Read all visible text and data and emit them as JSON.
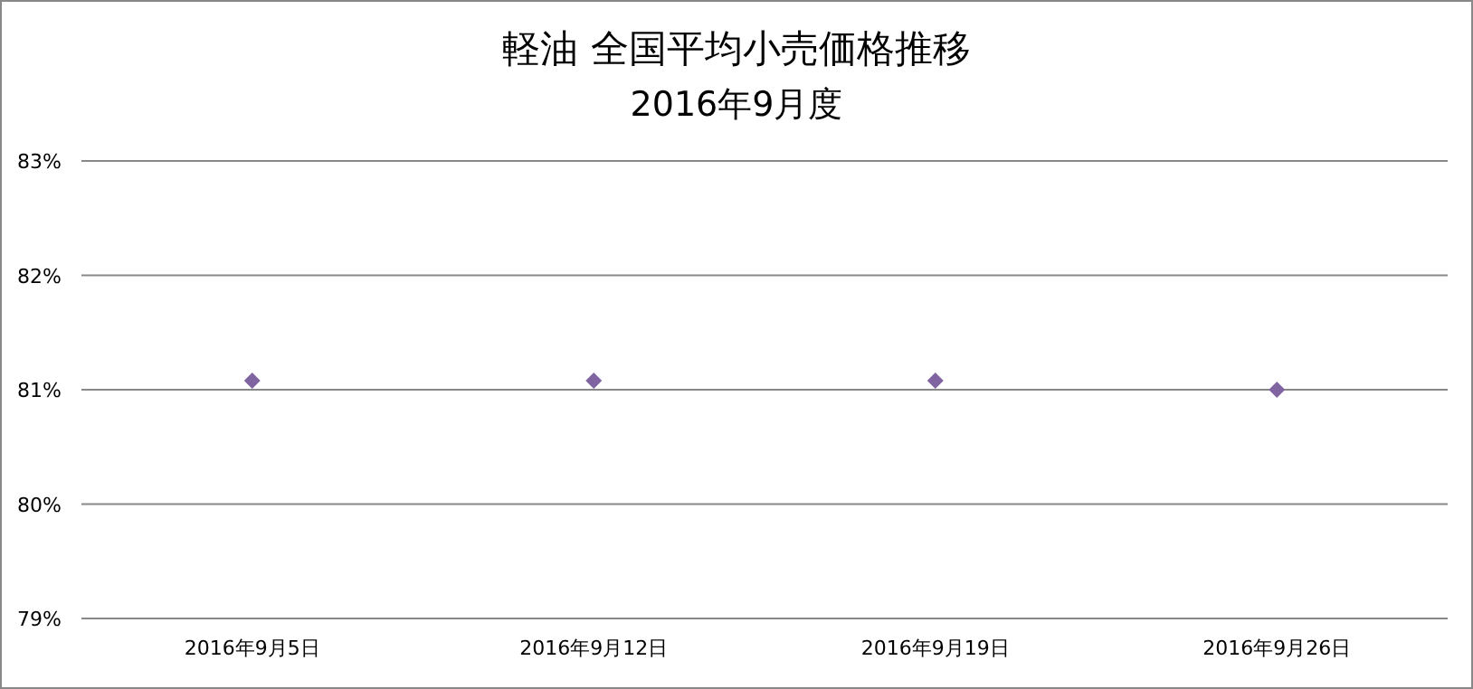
{
  "chart_data": {
    "type": "scatter",
    "title": "軽油  全国平均小売価格推移",
    "subtitle": "2016年9月度",
    "categories": [
      "2016年9月5日",
      "2016年9月12日",
      "2016年9月19日",
      "2016年9月26日"
    ],
    "series": [
      {
        "color": "#8064a2",
        "values": [
          81.08,
          81.08,
          81.08,
          81.0
        ]
      }
    ],
    "ylim": [
      79,
      83
    ],
    "yticks": [
      {
        "value": 79,
        "label": "79%"
      },
      {
        "value": 80,
        "label": "80%"
      },
      {
        "value": 81,
        "label": "81%"
      },
      {
        "value": 82,
        "label": "82%"
      },
      {
        "value": 83,
        "label": "83%"
      }
    ],
    "grid": "y",
    "marker": "diamond"
  }
}
